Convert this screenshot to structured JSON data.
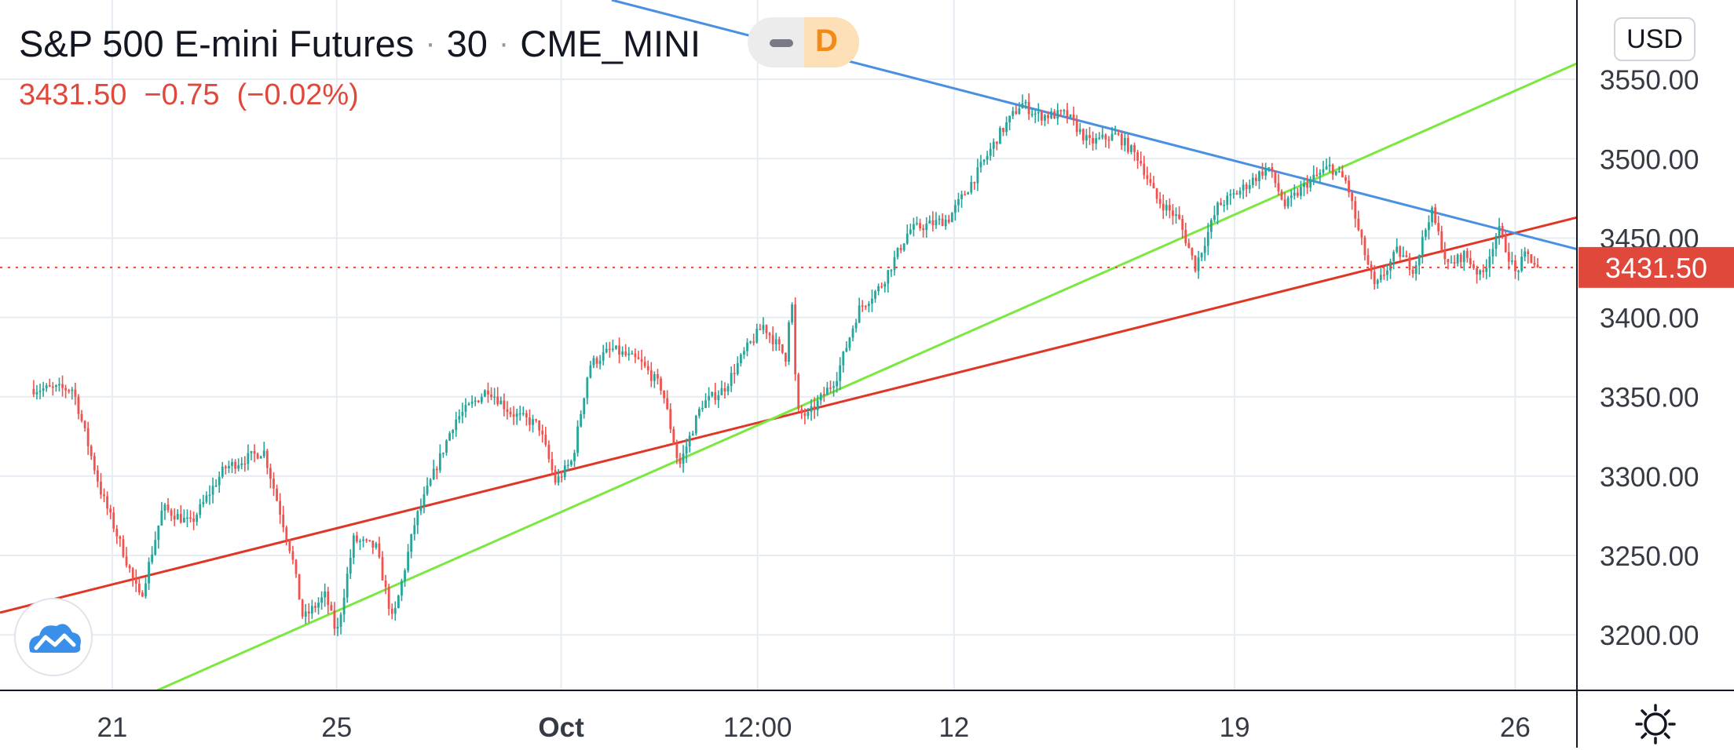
{
  "header": {
    "symbol": "S&P 500 E-mini Futures",
    "interval": "30",
    "exchange": "CME_MINI",
    "separator": "·",
    "badge_letter": "D"
  },
  "quote": {
    "last": "3431.50",
    "change": "−0.75",
    "change_pct": "(−0.02%)"
  },
  "currency": "USD",
  "colors": {
    "up": "#26a69a",
    "down": "#ef5350",
    "trend_red": "#e03626",
    "trend_green": "#7be83f",
    "trend_blue": "#4a90e2",
    "price_tag": "#e0483b",
    "grid": "#e6ecf2"
  },
  "icons": {
    "minus": "minus-icon",
    "logo": "tradingview-cloud-logo-icon",
    "settings": "gear-icon"
  },
  "chart_data": {
    "type": "candlestick",
    "title": "S&P 500 E-mini Futures · 30 · CME_MINI",
    "ylim": [
      3165,
      3600
    ],
    "xlim": [
      "Sep 19",
      "Oct 27"
    ],
    "grid": true,
    "y_ticks": [
      "3200.00",
      "3250.00",
      "3300.00",
      "3350.00",
      "3400.00",
      "3450.00",
      "3500.00",
      "3550.00"
    ],
    "x_ticks": [
      {
        "label": "21",
        "pos": 21
      },
      {
        "label": "25",
        "pos": 25
      },
      {
        "label": "Oct",
        "pos": 29
      },
      {
        "label": "12:00",
        "pos": 32.5
      },
      {
        "label": "12",
        "pos": 36
      },
      {
        "label": "19",
        "pos": 41
      },
      {
        "label": "26",
        "pos": 46
      }
    ],
    "last_price": 3431.5,
    "price_path": [
      {
        "x": 19.6,
        "y": 3355
      },
      {
        "x": 20.3,
        "y": 3355
      },
      {
        "x": 20.8,
        "y": 3290
      },
      {
        "x": 21.2,
        "y": 3252
      },
      {
        "x": 21.5,
        "y": 3222
      },
      {
        "x": 21.9,
        "y": 3280
      },
      {
        "x": 22.4,
        "y": 3270
      },
      {
        "x": 23.0,
        "y": 3305
      },
      {
        "x": 23.7,
        "y": 3316
      },
      {
        "x": 24.2,
        "y": 3250
      },
      {
        "x": 24.4,
        "y": 3210
      },
      {
        "x": 24.8,
        "y": 3225
      },
      {
        "x": 25.0,
        "y": 3200
      },
      {
        "x": 25.3,
        "y": 3260
      },
      {
        "x": 25.7,
        "y": 3255
      },
      {
        "x": 26.0,
        "y": 3208
      },
      {
        "x": 26.4,
        "y": 3272
      },
      {
        "x": 27.1,
        "y": 3335
      },
      {
        "x": 27.7,
        "y": 3355
      },
      {
        "x": 28.1,
        "y": 3340
      },
      {
        "x": 28.6,
        "y": 3332
      },
      {
        "x": 28.9,
        "y": 3296
      },
      {
        "x": 29.2,
        "y": 3310
      },
      {
        "x": 29.5,
        "y": 3370
      },
      {
        "x": 29.9,
        "y": 3380
      },
      {
        "x": 30.4,
        "y": 3372
      },
      {
        "x": 30.8,
        "y": 3355
      },
      {
        "x": 31.1,
        "y": 3306
      },
      {
        "x": 31.5,
        "y": 3345
      },
      {
        "x": 31.9,
        "y": 3355
      },
      {
        "x": 32.3,
        "y": 3380
      },
      {
        "x": 32.6,
        "y": 3395
      },
      {
        "x": 33.0,
        "y": 3375
      },
      {
        "x": 33.1,
        "y": 3418
      },
      {
        "x": 33.2,
        "y": 3340
      },
      {
        "x": 33.4,
        "y": 3338
      },
      {
        "x": 33.9,
        "y": 3362
      },
      {
        "x": 34.3,
        "y": 3405
      },
      {
        "x": 34.7,
        "y": 3420
      },
      {
        "x": 35.2,
        "y": 3455
      },
      {
        "x": 35.9,
        "y": 3462
      },
      {
        "x": 36.4,
        "y": 3490
      },
      {
        "x": 36.8,
        "y": 3515
      },
      {
        "x": 37.2,
        "y": 3535
      },
      {
        "x": 37.5,
        "y": 3527
      },
      {
        "x": 38.0,
        "y": 3528
      },
      {
        "x": 38.4,
        "y": 3510
      },
      {
        "x": 38.9,
        "y": 3515
      },
      {
        "x": 39.3,
        "y": 3500
      },
      {
        "x": 39.6,
        "y": 3475
      },
      {
        "x": 40.0,
        "y": 3462
      },
      {
        "x": 40.3,
        "y": 3432
      },
      {
        "x": 40.7,
        "y": 3470
      },
      {
        "x": 41.1,
        "y": 3480
      },
      {
        "x": 41.6,
        "y": 3495
      },
      {
        "x": 41.9,
        "y": 3470
      },
      {
        "x": 42.3,
        "y": 3485
      },
      {
        "x": 42.7,
        "y": 3495
      },
      {
        "x": 43.0,
        "y": 3485
      },
      {
        "x": 43.2,
        "y": 3455
      },
      {
        "x": 43.5,
        "y": 3418
      },
      {
        "x": 43.9,
        "y": 3442
      },
      {
        "x": 44.2,
        "y": 3430
      },
      {
        "x": 44.5,
        "y": 3468
      },
      {
        "x": 44.8,
        "y": 3432
      },
      {
        "x": 45.1,
        "y": 3440
      },
      {
        "x": 45.4,
        "y": 3425
      },
      {
        "x": 45.7,
        "y": 3456
      },
      {
        "x": 46.0,
        "y": 3428
      },
      {
        "x": 46.2,
        "y": 3440
      },
      {
        "x": 46.4,
        "y": 3431.5
      }
    ],
    "trendlines": [
      {
        "color": "red",
        "from": {
          "x": 19.0,
          "y": 3214
        },
        "to": {
          "x": 47.1,
          "y": 3463
        }
      },
      {
        "color": "green",
        "from": {
          "x": 21.8,
          "y": 3165
        },
        "to": {
          "x": 47.1,
          "y": 3560
        }
      },
      {
        "color": "blue",
        "from": {
          "x": 29.9,
          "y": 3600
        },
        "to": {
          "x": 47.1,
          "y": 3443
        }
      }
    ]
  }
}
